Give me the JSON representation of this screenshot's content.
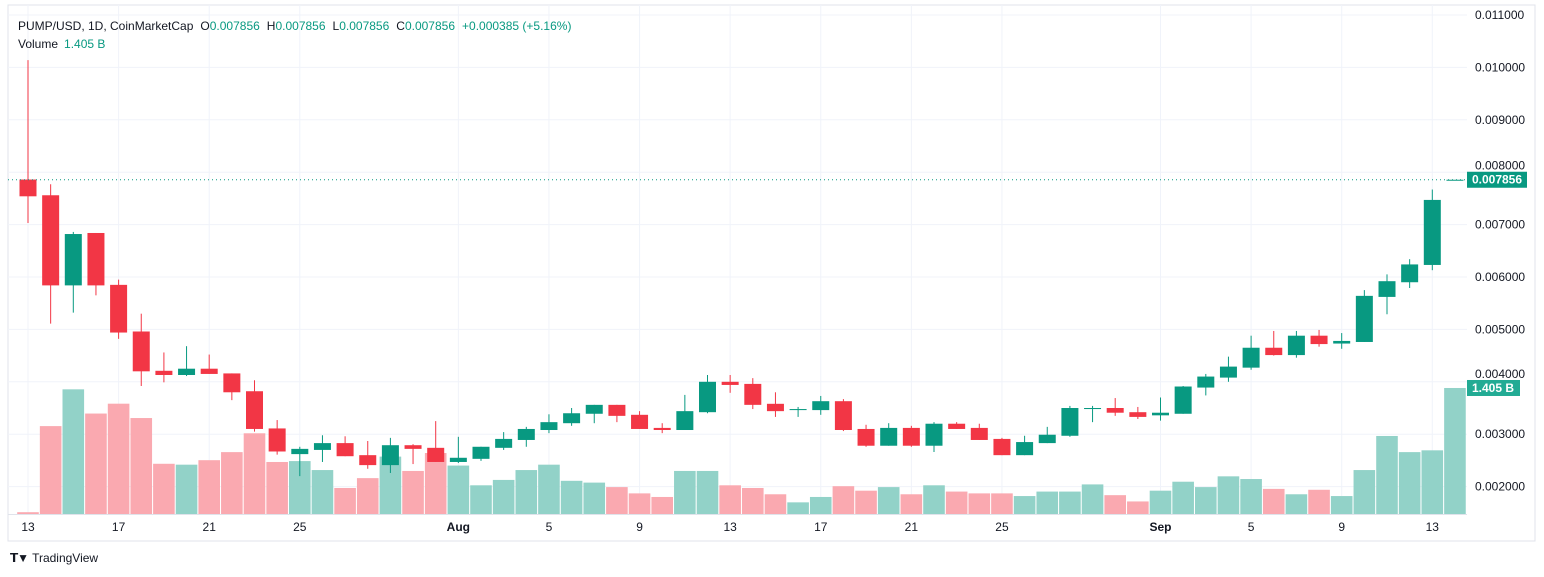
{
  "legend": {
    "symbol": "PUMP/USD, 1D, CoinMarketCap",
    "o_label": "O",
    "o_value": "0.007856",
    "h_label": "H",
    "h_value": "0.007856",
    "l_label": "L",
    "l_value": "0.007856",
    "c_label": "C",
    "c_value": "0.007856",
    "change": "+0.000385 (+5.16%)",
    "volume_label": "Volume",
    "volume_value": "1.405 B"
  },
  "branding": {
    "logo": "17",
    "name": "TradingView"
  },
  "colors": {
    "up": "#089981",
    "down": "#F23645",
    "volume_up": "#92D2C8",
    "volume_down": "#FAA9B0",
    "grid": "#F0F3FA"
  },
  "chart_data": {
    "type": "candlestick",
    "title": "PUMP/USD, 1D, CoinMarketCap",
    "ylim": [
      0.0015,
      0.0111
    ],
    "grid": true,
    "y_ticks": [
      "0.011000",
      "0.010000",
      "0.009000",
      "0.008000",
      "0.007000",
      "0.006000",
      "0.005000",
      "0.004000",
      "0.003000",
      "0.002000"
    ],
    "x_ticks": [
      {
        "label": "13",
        "date": "Jul 13"
      },
      {
        "label": "17",
        "date": "Jul 17"
      },
      {
        "label": "21",
        "date": "Jul 21"
      },
      {
        "label": "25",
        "date": "Jul 25"
      },
      {
        "label": "Aug",
        "date": "Aug 1"
      },
      {
        "label": "5",
        "date": "Aug 5"
      },
      {
        "label": "9",
        "date": "Aug 9"
      },
      {
        "label": "13",
        "date": "Aug 13"
      },
      {
        "label": "17",
        "date": "Aug 17"
      },
      {
        "label": "21",
        "date": "Aug 21"
      },
      {
        "label": "25",
        "date": "Aug 25"
      },
      {
        "label": "Sep",
        "date": "Sep 1"
      },
      {
        "label": "5",
        "date": "Sep 5"
      },
      {
        "label": "9",
        "date": "Sep 9"
      },
      {
        "label": "13",
        "date": "Sep 13"
      }
    ],
    "last_price_label": "0.007856",
    "last_volume_label": "1.405 B",
    "dates": [
      "Jul 13",
      "Jul 14",
      "Jul 15",
      "Jul 16",
      "Jul 17",
      "Jul 18",
      "Jul 19",
      "Jul 20",
      "Jul 21",
      "Jul 22",
      "Jul 23",
      "Jul 24",
      "Jul 25",
      "Jul 26",
      "Jul 27",
      "Jul 28",
      "Jul 29",
      "Jul 30",
      "Jul 31",
      "Aug 1",
      "Aug 2",
      "Aug 3",
      "Aug 4",
      "Aug 5",
      "Aug 6",
      "Aug 7",
      "Aug 8",
      "Aug 9",
      "Aug 10",
      "Aug 11",
      "Aug 12",
      "Aug 13",
      "Aug 14",
      "Aug 15",
      "Aug 16",
      "Aug 17",
      "Aug 18",
      "Aug 19",
      "Aug 20",
      "Aug 21",
      "Aug 22",
      "Aug 23",
      "Aug 24",
      "Aug 25",
      "Aug 26",
      "Aug 27",
      "Aug 28",
      "Aug 29",
      "Aug 30",
      "Aug 31",
      "Sep 1",
      "Sep 2",
      "Sep 3",
      "Sep 4",
      "Sep 5",
      "Sep 6",
      "Sep 7",
      "Sep 8",
      "Sep 9",
      "Sep 10",
      "Sep 11",
      "Sep 12",
      "Sep 13",
      "Sep 14"
    ],
    "open": [
      0.00786,
      0.00756,
      0.00584,
      0.00684,
      0.00585,
      0.00496,
      0.00421,
      0.00413,
      0.00425,
      0.00416,
      0.00382,
      0.00311,
      0.00262,
      0.0027,
      0.00283,
      0.0026,
      0.00241,
      0.00279,
      0.00274,
      0.00247,
      0.00253,
      0.00274,
      0.00289,
      0.00308,
      0.00321,
      0.00339,
      0.00356,
      0.00337,
      0.00312,
      0.00308,
      0.00342,
      0.004,
      0.00396,
      0.00358,
      0.00346,
      0.00346,
      0.00363,
      0.0031,
      0.00278,
      0.00312,
      0.00278,
      0.0032,
      0.00312,
      0.00291,
      0.0026,
      0.00283,
      0.00297,
      0.00348,
      0.0035,
      0.00342,
      0.00336,
      0.00339,
      0.00389,
      0.00408,
      0.00427,
      0.00465,
      0.00451,
      0.00488,
      0.00473,
      0.00476,
      0.00562,
      0.0059,
      0.00623,
      0.007856
    ],
    "high": [
      0.01014,
      0.00777,
      0.00686,
      0.00684,
      0.00595,
      0.0053,
      0.00456,
      0.00468,
      0.00452,
      0.00416,
      0.00403,
      0.00327,
      0.00276,
      0.00298,
      0.00296,
      0.00287,
      0.00293,
      0.00281,
      0.00325,
      0.00295,
      0.00276,
      0.00304,
      0.00314,
      0.00338,
      0.0035,
      0.00356,
      0.00356,
      0.00344,
      0.00321,
      0.00375,
      0.00413,
      0.00413,
      0.00407,
      0.0038,
      0.00352,
      0.00373,
      0.00367,
      0.00318,
      0.00321,
      0.00316,
      0.00323,
      0.00323,
      0.0032,
      0.00293,
      0.00297,
      0.00314,
      0.00354,
      0.00354,
      0.00369,
      0.00352,
      0.0037,
      0.00392,
      0.00415,
      0.00448,
      0.00488,
      0.00497,
      0.00497,
      0.00499,
      0.00493,
      0.00575,
      0.00605,
      0.00634,
      0.00767,
      0.007856
    ],
    "low": [
      0.00703,
      0.00511,
      0.00532,
      0.00565,
      0.00482,
      0.00392,
      0.00399,
      0.00411,
      0.00415,
      0.00365,
      0.00305,
      0.00261,
      0.0022,
      0.00247,
      0.00258,
      0.00234,
      0.00226,
      0.00243,
      0.00247,
      0.00245,
      0.00249,
      0.0027,
      0.00276,
      0.00302,
      0.00316,
      0.00321,
      0.00323,
      0.0031,
      0.00302,
      0.00308,
      0.0034,
      0.00379,
      0.00348,
      0.00333,
      0.00333,
      0.00337,
      0.00306,
      0.00276,
      0.00278,
      0.00276,
      0.00266,
      0.0031,
      0.00289,
      0.0026,
      0.0026,
      0.00283,
      0.00295,
      0.00323,
      0.00335,
      0.00329,
      0.00326,
      0.00339,
      0.00374,
      0.004,
      0.00423,
      0.0045,
      0.00446,
      0.00467,
      0.00463,
      0.00476,
      0.00529,
      0.00579,
      0.00613,
      0.007856
    ],
    "close": [
      0.00754,
      0.00584,
      0.00682,
      0.00584,
      0.00494,
      0.0042,
      0.00413,
      0.00425,
      0.00415,
      0.0038,
      0.0031,
      0.00267,
      0.00272,
      0.00283,
      0.00258,
      0.00241,
      0.00279,
      0.00272,
      0.00247,
      0.00255,
      0.00276,
      0.00291,
      0.0031,
      0.00323,
      0.0034,
      0.00356,
      0.00335,
      0.0031,
      0.00308,
      0.00344,
      0.004,
      0.00394,
      0.00356,
      0.00344,
      0.00348,
      0.00363,
      0.00308,
      0.00278,
      0.00312,
      0.00278,
      0.0032,
      0.0031,
      0.00289,
      0.0026,
      0.00285,
      0.00299,
      0.0035,
      0.0035,
      0.00341,
      0.00333,
      0.00341,
      0.00391,
      0.0041,
      0.00429,
      0.00465,
      0.00451,
      0.00488,
      0.00472,
      0.00478,
      0.00564,
      0.00592,
      0.00624,
      0.007471,
      0.007856
    ],
    "volume_billions": [
      0.02,
      0.98,
      1.39,
      1.12,
      1.23,
      1.07,
      0.56,
      0.55,
      0.6,
      0.69,
      0.9,
      0.58,
      0.59,
      0.49,
      0.29,
      0.4,
      0.64,
      0.48,
      0.68,
      0.54,
      0.32,
      0.38,
      0.49,
      0.55,
      0.37,
      0.35,
      0.3,
      0.23,
      0.19,
      0.48,
      0.48,
      0.32,
      0.29,
      0.22,
      0.13,
      0.19,
      0.31,
      0.26,
      0.3,
      0.22,
      0.32,
      0.25,
      0.23,
      0.23,
      0.2,
      0.25,
      0.25,
      0.33,
      0.21,
      0.14,
      0.26,
      0.36,
      0.3,
      0.42,
      0.39,
      0.28,
      0.22,
      0.27,
      0.2,
      0.49,
      0.87,
      0.69,
      0.71,
      1.405
    ]
  }
}
